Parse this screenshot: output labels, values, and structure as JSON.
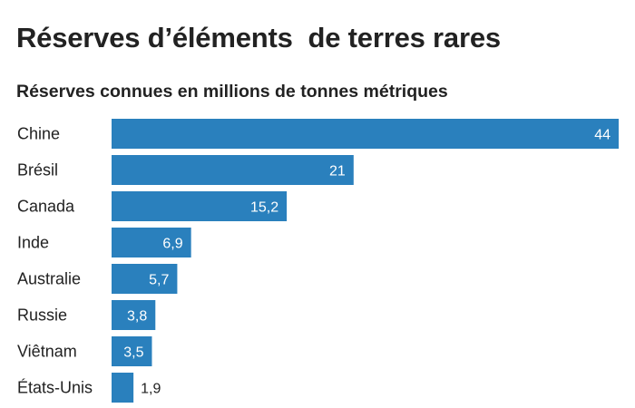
{
  "title": "Réserves d’éléments  de terres rares",
  "subtitle": "Réserves connues en millions de tonnes métriques",
  "colors": {
    "bar": "#2a80bd",
    "inside_label": "#ffffff",
    "outside_label": "#222222"
  },
  "chart_data": {
    "type": "bar",
    "orientation": "horizontal",
    "title": "Réserves d’éléments  de terres rares",
    "subtitle": "Réserves connues en millions de tonnes métriques",
    "categories": [
      "Chine",
      "Brésil",
      "Canada",
      "Inde",
      "Australie",
      "Russie",
      "Viêtnam",
      "États-Unis"
    ],
    "values": [
      44,
      21,
      15.2,
      6.9,
      5.7,
      3.8,
      3.5,
      1.9
    ],
    "value_labels": [
      "44",
      "21",
      "15,2",
      "6,9",
      "5,7",
      "3,8",
      "3,5",
      "1,9"
    ],
    "xlim": [
      0,
      44
    ],
    "grid": false,
    "legend": "none"
  }
}
